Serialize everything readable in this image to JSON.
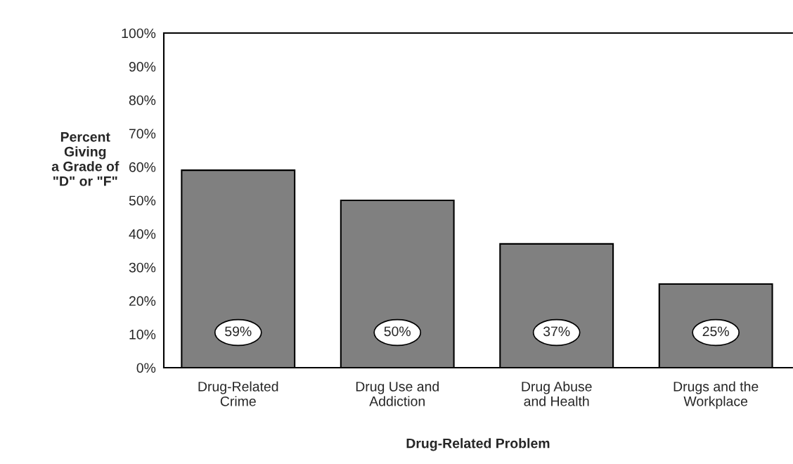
{
  "chart_data": {
    "type": "bar",
    "xlabel": "Drug-Related Problem",
    "ylabel": "Percent\nGiving\na Grade of\n\"D\" or \"F\"",
    "categories": [
      "Drug-Related\nCrime",
      "Drug Use and\nAddiction",
      "Drug Abuse\nand Health",
      "Drugs and the\nWorkplace"
    ],
    "values": [
      59,
      50,
      37,
      25
    ],
    "color": "#808080",
    "value_labels": [
      "59%",
      "50%",
      "37%",
      "25%"
    ],
    "ylim": [
      0,
      100
    ],
    "yticks": [
      {
        "value": 0,
        "label": "0%"
      },
      {
        "value": 10,
        "label": "10%"
      },
      {
        "value": 20,
        "label": "20%"
      },
      {
        "value": 30,
        "label": "30%"
      },
      {
        "value": 40,
        "label": "40%"
      },
      {
        "value": 50,
        "label": "50%"
      },
      {
        "value": 60,
        "label": "60%"
      },
      {
        "value": 70,
        "label": "70%"
      },
      {
        "value": 80,
        "label": "80%"
      },
      {
        "value": 90,
        "label": "90%"
      },
      {
        "value": 100,
        "label": "100%"
      }
    ],
    "grid": false,
    "legend": false
  }
}
